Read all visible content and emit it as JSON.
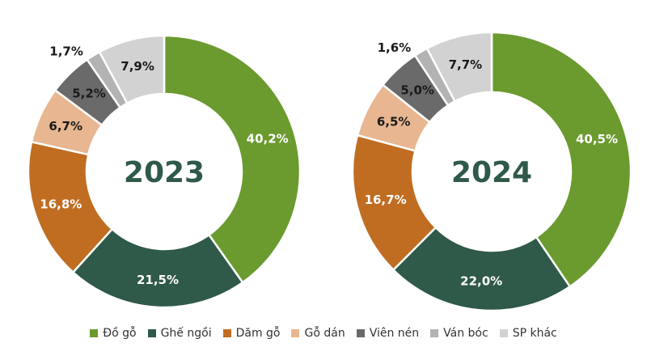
{
  "chart_data": [
    {
      "type": "pie",
      "variant": "donut",
      "center_label": "2023",
      "categories": [
        "Đồ gỗ",
        "Ghế ngồi",
        "Dăm gỗ",
        "Gỗ dán",
        "Viên nén",
        "Ván bóc",
        "SP khác"
      ],
      "values": [
        40.2,
        21.5,
        16.8,
        6.7,
        5.2,
        1.7,
        7.9
      ],
      "labels": [
        "40,2%",
        "21,5%",
        "16,8%",
        "6,7%",
        "5,2%",
        "1,7%",
        "7,9%"
      ]
    },
    {
      "type": "pie",
      "variant": "donut",
      "center_label": "2024",
      "categories": [
        "Đồ gỗ",
        "Ghế ngồi",
        "Dăm gỗ",
        "Gỗ dán",
        "Viên nén",
        "Ván bóc",
        "SP khác"
      ],
      "values": [
        40.5,
        22.0,
        16.7,
        6.5,
        5.0,
        1.6,
        7.7
      ],
      "labels": [
        "40,5%",
        "22,0%",
        "16,7%",
        "6,5%",
        "5,0%",
        "1,6%",
        "7,7%"
      ]
    }
  ],
  "legend": {
    "placement": "bottom",
    "items": [
      {
        "label": "Đồ gỗ",
        "color": "#6b9a2e"
      },
      {
        "label": "Ghế ngồi",
        "color": "#2f5948"
      },
      {
        "label": "Dăm gỗ",
        "color": "#c06d22"
      },
      {
        "label": "Gỗ dán",
        "color": "#e8b690"
      },
      {
        "label": "Viên nén",
        "color": "#6a6a6a"
      },
      {
        "label": "Ván bóc",
        "color": "#b3b3b3"
      },
      {
        "label": "SP khác",
        "color": "#d2d2d2"
      }
    ]
  },
  "label_colors": {
    "on_dark": "#ffffff",
    "on_light": "#1a1a1a"
  }
}
